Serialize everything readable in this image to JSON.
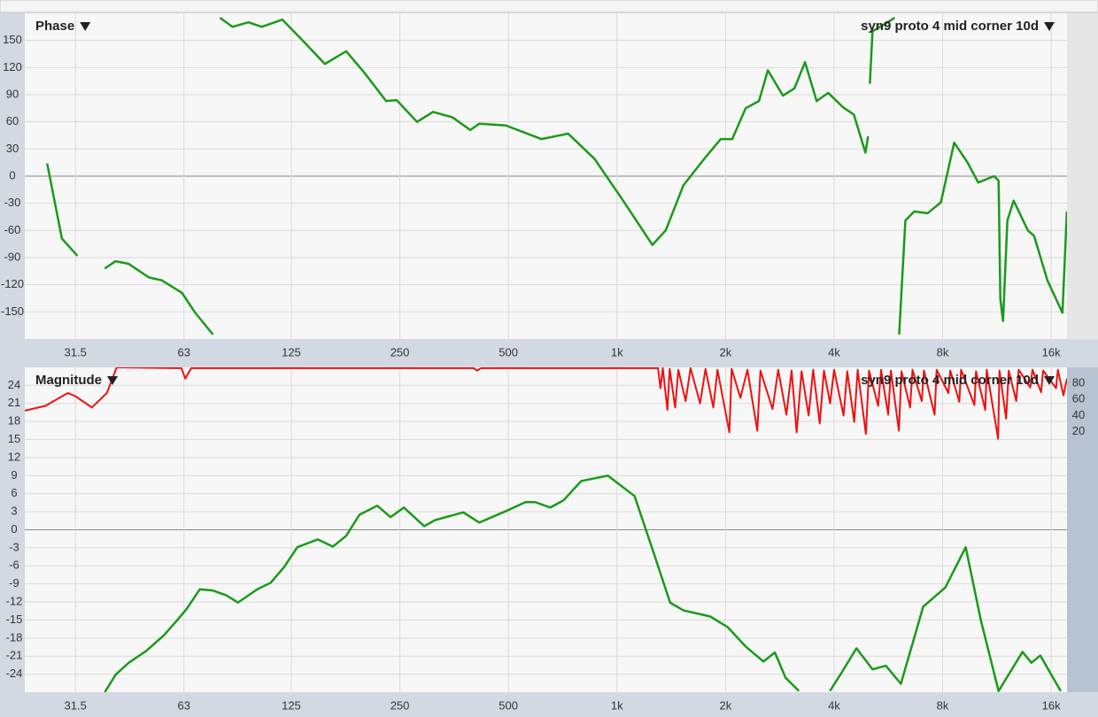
{
  "chart_data": [
    {
      "type": "line",
      "title": "Phase",
      "xscale": "log",
      "grid": true,
      "xlim": [
        22.8,
        17700
      ],
      "xticks": [
        31.5,
        63,
        125,
        250,
        500,
        {
          "value": 1000,
          "label": "1k"
        },
        {
          "value": 2000,
          "label": "2k"
        },
        {
          "value": 4000,
          "label": "4k"
        },
        {
          "value": 8000,
          "label": "8k"
        },
        {
          "value": 16000,
          "label": "16k"
        }
      ],
      "ylim": [
        -180,
        180
      ],
      "yticks": [
        150,
        120,
        90,
        60,
        30,
        0,
        -30,
        -60,
        -90,
        -120,
        -150
      ],
      "series": [
        {
          "name": "syn9 proto 4 mid corner 10d",
          "color": "#1a9a1a",
          "x": [
            26.3,
            28.9,
            31.9,
            35,
            38.0,
            40.7,
            44.3,
            50.4,
            54.6,
            62.2,
            67.7,
            75.8,
            77.5,
            79.3,
            85.9,
            95.1,
            103.5,
            118,
            133.6,
            154.9,
            177.5,
            198.7,
            229,
            245,
            279,
            309,
            350,
            392,
            415,
            492,
            617,
            732,
            867,
            1028,
            1254,
            1365,
            1529,
            1761,
            1940,
            2088,
            2274,
            2476,
            2621,
            2885,
            3106,
            3323,
            3578,
            3852,
            4240,
            4539,
            4886,
            4971,
            5000,
            5027,
            5112,
            5632,
            5891,
            5970,
            6061,
            6306,
            6675,
            7267,
            7910,
            8612,
            9381,
            10039,
            11116,
            11435,
            11564,
            11765,
            12096,
            12591,
            13784,
            14345,
            15611,
            17193,
            17687
          ],
          "values": [
            14,
            -69,
            -88,
            null,
            -102,
            -94,
            -97,
            -112,
            -115,
            -129,
            -151,
            -175,
            null,
            175,
            165,
            170,
            165,
            173,
            151,
            124,
            138,
            115,
            83,
            84,
            60,
            71,
            65,
            51,
            58,
            56,
            41,
            47,
            19,
            -24,
            -76,
            -60,
            -10,
            21,
            41,
            41,
            75,
            83,
            117,
            89,
            97,
            126,
            83,
            92,
            76,
            68,
            26,
            44,
            null,
            102,
            160,
            170,
            175,
            null,
            -175,
            -49,
            -39,
            -41,
            -29,
            37,
            15,
            -7,
            0,
            -5,
            -136,
            -160,
            -49,
            -27,
            -60,
            -66,
            -115,
            -151,
            -39
          ]
        }
      ]
    },
    {
      "type": "line",
      "title": "Magnitude",
      "xscale": "log",
      "grid": true,
      "xlim": [
        22.8,
        17700
      ],
      "xticks": [
        31.5,
        63,
        125,
        250,
        500,
        {
          "value": 1000,
          "label": "1k"
        },
        {
          "value": 2000,
          "label": "2k"
        },
        {
          "value": 4000,
          "label": "4k"
        },
        {
          "value": 8000,
          "label": "8k"
        },
        {
          "value": 16000,
          "label": "16k"
        }
      ],
      "ylim": [
        -27,
        27
      ],
      "yticks": [
        24,
        21,
        18,
        15,
        12,
        9,
        6,
        3,
        0,
        -3,
        -6,
        -9,
        -12,
        -15,
        -18,
        -21,
        -24
      ],
      "y2lim": [
        -305,
        100
      ],
      "y2ticks": [
        80,
        60,
        40,
        20
      ],
      "series": [
        {
          "name": "syn9 proto 4 mid corner 10d",
          "color": "#1a9a1a",
          "x": [
            38.0,
            40.7,
            44.3,
            49.6,
            55.5,
            60.4,
            64.0,
            69.7,
            75.8,
            82.6,
            88.9,
            100.6,
            109.6,
            119.4,
            129.9,
            148,
            163,
            177.5,
            193.2,
            216.4,
            235.6,
            256.4,
            292.1,
            312.8,
            374.9,
            415,
            492,
            557.6,
            593,
            653,
            711,
            796,
            944,
            1119,
            1254,
            1404,
            1529,
            1812,
            2030,
            2274,
            2547,
            2741,
            2935,
            3195,
            3500,
            3895,
            4191,
            4615,
            5112,
            5566,
            6128,
            7065,
            8138,
            9271,
            10207,
            11435,
            13322,
            14101,
            14925,
            17000
          ],
          "values": [
            -27,
            -24.1,
            -22.1,
            -20.1,
            -17.5,
            -15,
            -13.2,
            -9.9,
            -10.1,
            -10.9,
            -12.1,
            -9.9,
            -8.8,
            -6.2,
            -2.9,
            -1.6,
            -2.8,
            -1,
            2.5,
            4,
            2.1,
            3.7,
            0.6,
            1.6,
            2.9,
            1.2,
            3.1,
            4.6,
            4.6,
            3.7,
            4.9,
            8.1,
            9,
            5.6,
            -3.2,
            -12.1,
            -13.4,
            -14.4,
            -16.2,
            -19.4,
            -21.9,
            -20.4,
            -24.6,
            -26.8,
            null,
            -26.8,
            -23.8,
            -19.7,
            -23.2,
            -22.6,
            -25.6,
            -12.8,
            -9.6,
            -2.9,
            -15,
            -26.8,
            -20.3,
            -22.1,
            -20.9,
            -26.8
          ]
        },
        {
          "color": "#ee1111",
          "axis": "y2",
          "x": [
            22.8,
            26,
            30,
            31.5,
            35,
            38.5,
            41,
            60,
            62,
            63.5,
            66,
            200,
            400,
            410,
            420,
            1000,
            1300,
            1320,
            1340,
            1380,
            1400,
            1450,
            1480,
            1550,
            1600,
            1700,
            1760,
            1850,
            1900,
            2050,
            2080,
            2200,
            2300,
            2450,
            2500,
            2700,
            2800,
            2950,
            3050,
            3150,
            3250,
            3400,
            3500,
            3650,
            3750,
            3900,
            4000,
            4250,
            4350,
            4550,
            4650,
            4900,
            5000,
            5300,
            5400,
            5650,
            5750,
            6050,
            6150,
            6500,
            6600,
            7000,
            7100,
            7600,
            7700,
            8300,
            8400,
            8900,
            9000,
            9800,
            9900,
            10500,
            10600,
            11400,
            11500,
            12000,
            12200,
            12800,
            13000,
            14000,
            14200,
            15000,
            15200,
            16500,
            16700,
            17300,
            17700
          ],
          "values": [
            46,
            52,
            68,
            64,
            50,
            68,
            100,
            99,
            99,
            86,
            99,
            99,
            99,
            96,
            99,
            99,
            99,
            74,
            99,
            47,
            98,
            50,
            97,
            58,
            99,
            55,
            98,
            50,
            97,
            19,
            98,
            62,
            97,
            21,
            96,
            48,
            97,
            41,
            96,
            19,
            95,
            40,
            97,
            30,
            96,
            55,
            97,
            40,
            95,
            32,
            97,
            17,
            96,
            52,
            97,
            41,
            96,
            21,
            95,
            50,
            97,
            58,
            96,
            41,
            97,
            68,
            96,
            57,
            97,
            53,
            95,
            47,
            97,
            11,
            96,
            36,
            96,
            58,
            97,
            75,
            97,
            69,
            96,
            74,
            97,
            65,
            86
          ]
        }
      ]
    }
  ]
}
